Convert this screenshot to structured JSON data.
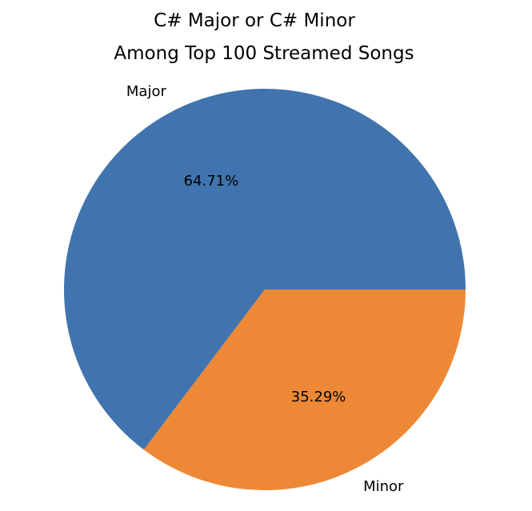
{
  "chart_data": {
    "type": "pie",
    "title": "C# Major or C# Minor",
    "subtitle": "Among Top 100 Streamed Songs",
    "slices": [
      {
        "label": "Major",
        "value": 64.71,
        "pct_label": "64.71%",
        "color": "#4174ae"
      },
      {
        "label": "Minor",
        "value": 35.29,
        "pct_label": "35.29%",
        "color": "#ed8936"
      }
    ],
    "start_angle_deg": 0,
    "direction": "counterclockwise"
  }
}
